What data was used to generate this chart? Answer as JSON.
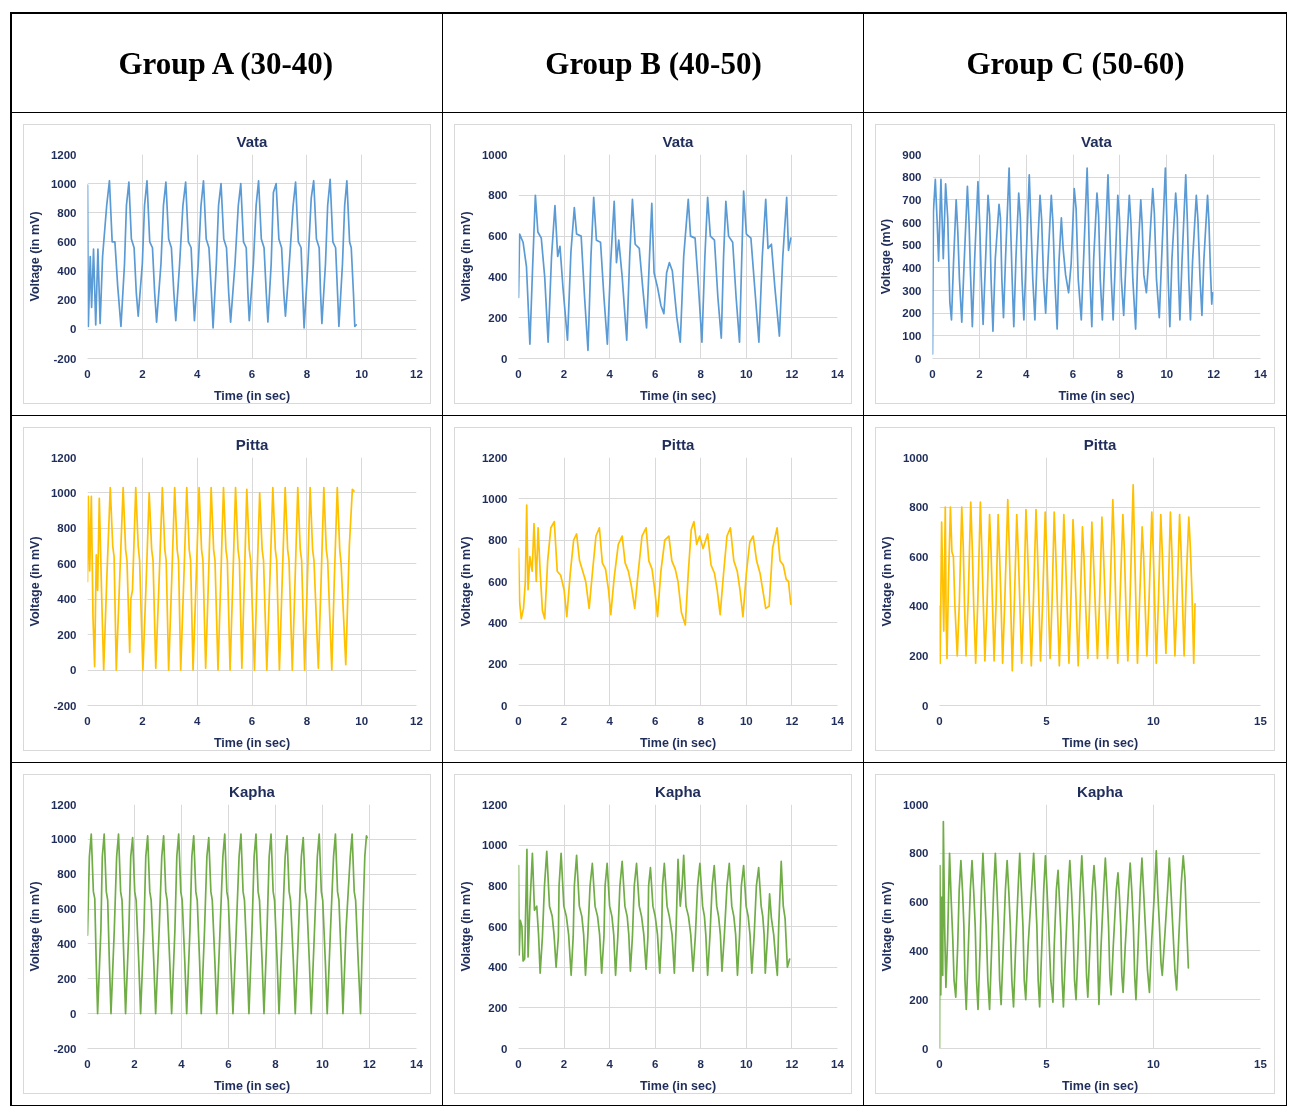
{
  "chart_data": [
    {
      "type": "other",
      "title": "Group A (30-40)"
    },
    {
      "type": "other",
      "title": "Group B (40-50)"
    },
    {
      "type": "other",
      "title": "Group C (50-60)"
    },
    {
      "type": "line",
      "title": "Vata",
      "xlabel": "Time (in sec)",
      "ylabel": "Voltage (in mV)",
      "xlim": [
        0,
        12
      ],
      "ylim": [
        -200,
        1200
      ],
      "xticks": [
        0,
        2,
        4,
        6,
        8,
        10,
        12
      ],
      "yticks": [
        -200,
        0,
        200,
        400,
        600,
        800,
        1000,
        1200
      ],
      "grid": true,
      "x": [
        0,
        0.03,
        0.1,
        0.15,
        0.22,
        0.3,
        0.38,
        0.46,
        0.55,
        0.7,
        0.8,
        0.9,
        1.0,
        1.1,
        1.22,
        1.35,
        1.42,
        1.51,
        1.6,
        1.7,
        1.78,
        1.85,
        2.0,
        2.08,
        2.17,
        2.27,
        2.37,
        2.45,
        2.52,
        2.68,
        2.77,
        2.86,
        2.96,
        3.06,
        3.15,
        3.22,
        3.36,
        3.48,
        3.58,
        3.68,
        3.78,
        3.85,
        3.9,
        4.04,
        4.14,
        4.23,
        4.33,
        4.43,
        4.52,
        4.58,
        4.7,
        4.78,
        4.87,
        4.97,
        5.07,
        5.15,
        5.22,
        5.38,
        5.5,
        5.59,
        5.69,
        5.79,
        5.85,
        5.9,
        6.05,
        6.15,
        6.24,
        6.34,
        6.44,
        6.52,
        6.58,
        6.7,
        6.78,
        6.88,
        6.98,
        7.08,
        7.16,
        7.22,
        7.36,
        7.5,
        7.59,
        7.69,
        7.79,
        7.85,
        7.9,
        8.04,
        8.16,
        8.25,
        8.35,
        8.45,
        8.5,
        8.55,
        8.68,
        8.76,
        8.85,
        8.95,
        9.05,
        9.12,
        9.17,
        9.3,
        9.38,
        9.46,
        9.56,
        9.62,
        9.7,
        9.75,
        9.8
      ],
      "series": [
        {
          "color": "#5b9bd5",
          "values": [
            990,
            20,
            500,
            150,
            550,
            30,
            550,
            40,
            500,
            850,
            1020,
            600,
            600,
            300,
            20,
            450,
            850,
            1010,
            620,
            560,
            250,
            90,
            450,
            850,
            1020,
            600,
            560,
            250,
            50,
            450,
            850,
            1010,
            620,
            560,
            250,
            60,
            450,
            850,
            1010,
            600,
            560,
            250,
            60,
            450,
            850,
            1020,
            620,
            560,
            250,
            10,
            450,
            850,
            1000,
            620,
            560,
            250,
            50,
            450,
            850,
            1000,
            600,
            560,
            250,
            60,
            450,
            850,
            1020,
            620,
            560,
            250,
            50,
            450,
            940,
            1000,
            620,
            560,
            250,
            90,
            450,
            850,
            1010,
            600,
            560,
            250,
            10,
            450,
            900,
            1020,
            620,
            560,
            250,
            40,
            450,
            850,
            1030,
            600,
            560,
            250,
            20,
            450,
            850,
            1020,
            600,
            560,
            250,
            20,
            30
          ]
        }
      ]
    },
    {
      "type": "line",
      "title": "Vata",
      "xlabel": "Time (in sec)",
      "ylabel": "Voltage (in mV)",
      "xlim": [
        0,
        14
      ],
      "ylim": [
        0,
        1000
      ],
      "xticks": [
        0,
        2,
        4,
        6,
        8,
        10,
        12,
        14
      ],
      "yticks": [
        0,
        200,
        400,
        600,
        800,
        1000
      ],
      "grid": true,
      "x": [
        0,
        0.05,
        0.2,
        0.35,
        0.5,
        0.62,
        0.74,
        0.85,
        1.0,
        1.15,
        1.3,
        1.45,
        1.6,
        1.72,
        1.82,
        1.95,
        2.15,
        2.3,
        2.45,
        2.55,
        2.75,
        2.9,
        3.05,
        3.18,
        3.3,
        3.42,
        3.6,
        3.75,
        3.9,
        4.05,
        4.2,
        4.3,
        4.4,
        4.55,
        4.75,
        4.88,
        5.0,
        5.12,
        5.3,
        5.45,
        5.62,
        5.75,
        5.85,
        5.95,
        6.1,
        6.25,
        6.38,
        6.5,
        6.62,
        6.75,
        6.95,
        7.1,
        7.25,
        7.45,
        7.55,
        7.75,
        7.9,
        8.05,
        8.18,
        8.3,
        8.42,
        8.6,
        8.75,
        8.9,
        9.0,
        9.1,
        9.22,
        9.4,
        9.55,
        9.7,
        9.8,
        9.88,
        10.0,
        10.2,
        10.4,
        10.55,
        10.7,
        10.85,
        10.95,
        11.1,
        11.25,
        11.45,
        11.6,
        11.77,
        11.85,
        11.95
      ],
      "series": [
        {
          "color": "#5b9bd5",
          "values": [
            300,
            610,
            570,
            450,
            70,
            450,
            800,
            620,
            590,
            400,
            80,
            500,
            750,
            500,
            550,
            350,
            90,
            520,
            740,
            610,
            600,
            300,
            40,
            500,
            790,
            580,
            570,
            300,
            70,
            480,
            770,
            470,
            580,
            400,
            90,
            500,
            780,
            560,
            540,
            350,
            150,
            500,
            760,
            420,
            350,
            260,
            220,
            420,
            470,
            430,
            200,
            80,
            500,
            780,
            600,
            590,
            350,
            80,
            500,
            790,
            600,
            580,
            300,
            100,
            500,
            770,
            600,
            570,
            300,
            80,
            500,
            820,
            610,
            590,
            300,
            80,
            500,
            780,
            540,
            560,
            350,
            110,
            500,
            790,
            530,
            590
          ]
        }
      ]
    },
    {
      "type": "line",
      "title": "Vata",
      "xlabel": "Time (in sec)",
      "ylabel": "Voltage (mV)",
      "xlim": [
        0,
        14
      ],
      "ylim": [
        0,
        900
      ],
      "xticks": [
        0,
        2,
        4,
        6,
        8,
        10,
        12,
        14
      ],
      "yticks": [
        0,
        100,
        200,
        300,
        400,
        500,
        600,
        700,
        800,
        900
      ],
      "grid": true,
      "x": [
        0,
        0.04,
        0.12,
        0.2,
        0.26,
        0.36,
        0.46,
        0.56,
        0.65,
        0.74,
        0.81,
        0.9,
        1.01,
        1.08,
        1.15,
        1.25,
        1.35,
        1.49,
        1.56,
        1.62,
        1.7,
        1.8,
        1.94,
        2.02,
        2.08,
        2.16,
        2.26,
        2.37,
        2.44,
        2.5,
        2.58,
        2.68,
        2.84,
        2.9,
        2.96,
        3.03,
        3.12,
        3.27,
        3.33,
        3.4,
        3.47,
        3.56,
        3.68,
        3.75,
        3.82,
        3.9,
        4.0,
        4.13,
        4.2,
        4.28,
        4.37,
        4.46,
        4.59,
        4.66,
        4.74,
        4.83,
        4.93,
        5.07,
        5.14,
        5.22,
        5.32,
        5.4,
        5.5,
        5.58,
        5.68,
        5.81,
        5.92,
        6.05,
        6.13,
        6.22,
        6.35,
        6.45,
        6.6,
        6.66,
        6.72,
        6.8,
        6.88,
        7.02,
        7.09,
        7.16,
        7.25,
        7.35,
        7.49,
        7.56,
        7.63,
        7.71,
        7.8,
        7.91,
        7.98,
        8.06,
        8.16,
        8.26,
        8.4,
        8.47,
        8.55,
        8.67,
        8.75,
        8.89,
        8.95,
        9.02,
        9.13,
        9.23,
        9.4,
        9.47,
        9.56,
        9.68,
        9.78,
        9.94,
        10.0,
        10.06,
        10.13,
        10.22,
        10.38,
        10.45,
        10.5,
        10.56,
        10.65,
        10.81,
        10.88,
        10.94,
        11.01,
        11.1,
        11.26,
        11.33,
        11.42,
        11.5,
        11.58,
        11.74,
        11.8,
        11.86,
        11.92,
        11.95
      ],
      "series": [
        {
          "color": "#5b9bd5",
          "values": [
            20,
            650,
            790,
            600,
            430,
            790,
            440,
            770,
            620,
            250,
            170,
            430,
            700,
            560,
            350,
            160,
            420,
            760,
            600,
            380,
            140,
            440,
            780,
            580,
            360,
            150,
            420,
            720,
            630,
            350,
            120,
            440,
            680,
            620,
            350,
            180,
            450,
            840,
            600,
            350,
            140,
            440,
            730,
            620,
            350,
            170,
            450,
            810,
            600,
            350,
            170,
            430,
            720,
            610,
            350,
            200,
            430,
            720,
            600,
            350,
            130,
            430,
            620,
            480,
            370,
            290,
            420,
            750,
            660,
            350,
            170,
            440,
            840,
            620,
            350,
            140,
            440,
            730,
            630,
            350,
            170,
            440,
            810,
            600,
            350,
            170,
            420,
            720,
            620,
            350,
            190,
            430,
            720,
            600,
            350,
            130,
            410,
            700,
            590,
            370,
            290,
            440,
            750,
            640,
            350,
            180,
            440,
            840,
            620,
            350,
            140,
            440,
            730,
            620,
            350,
            170,
            430,
            810,
            600,
            350,
            170,
            430,
            720,
            610,
            350,
            190,
            430,
            720,
            600,
            400,
            240,
            290
          ]
        }
      ]
    },
    {
      "type": "line",
      "title": "Pitta",
      "xlabel": "Time (in sec)",
      "ylabel": "Voltage (in mV)",
      "xlim": [
        0,
        12
      ],
      "ylim": [
        -200,
        1200
      ],
      "xticks": [
        0,
        2,
        4,
        6,
        8,
        10,
        12
      ],
      "yticks": [
        -200,
        0,
        200,
        400,
        600,
        800,
        1000,
        1200
      ],
      "grid": true,
      "x": [
        0,
        0.03,
        0.08,
        0.14,
        0.2,
        0.26,
        0.32,
        0.37,
        0.43,
        0.52,
        0.59,
        0.7,
        0.83,
        0.92,
        0.97,
        1.05,
        1.17,
        1.3,
        1.39,
        1.44,
        1.54,
        1.58,
        1.64,
        1.76,
        1.85,
        1.9,
        2.02,
        2.14,
        2.25,
        2.34,
        2.39,
        2.49,
        2.61,
        2.73,
        2.82,
        2.87,
        2.96,
        3.07,
        3.18,
        3.27,
        3.32,
        3.4,
        3.51,
        3.62,
        3.71,
        3.76,
        3.85,
        3.96,
        4.07,
        4.16,
        4.21,
        4.31,
        4.41,
        4.51,
        4.6,
        4.65,
        4.76,
        4.86,
        4.96,
        5.05,
        5.1,
        5.2,
        5.3,
        5.4,
        5.49,
        5.54,
        5.63,
        5.72,
        5.81,
        5.9,
        5.95,
        6.09,
        6.18,
        6.28,
        6.37,
        6.42,
        6.54,
        6.65,
        6.76,
        6.85,
        6.9,
        7.0,
        7.1,
        7.21,
        7.3,
        7.35,
        7.47,
        7.57,
        7.67,
        7.76,
        7.81,
        7.92,
        8.02,
        8.12,
        8.21,
        8.26,
        8.42,
        8.52,
        8.62,
        8.71,
        8.76,
        8.91,
        9.0,
        9.11,
        9.2,
        9.25,
        9.42,
        9.55,
        9.66,
        9.72
      ],
      "series": [
        {
          "color": "#ffc000",
          "values": [
            500,
            980,
            560,
            980,
            300,
            20,
            650,
            450,
            970,
            400,
            0,
            500,
            1030,
            700,
            640,
            0,
            500,
            1030,
            680,
            620,
            100,
            400,
            450,
            1030,
            700,
            620,
            0,
            500,
            1000,
            680,
            620,
            10,
            500,
            1030,
            680,
            620,
            0,
            500,
            1030,
            680,
            620,
            0,
            500,
            1030,
            680,
            620,
            0,
            500,
            1030,
            680,
            620,
            10,
            500,
            1030,
            680,
            620,
            0,
            500,
            1030,
            680,
            620,
            0,
            500,
            1030,
            680,
            620,
            10,
            500,
            1020,
            680,
            620,
            0,
            500,
            1000,
            680,
            620,
            0,
            500,
            1030,
            680,
            620,
            0,
            500,
            1030,
            680,
            620,
            0,
            500,
            1030,
            680,
            620,
            0,
            500,
            1030,
            680,
            620,
            10,
            500,
            1030,
            680,
            620,
            0,
            500,
            1030,
            680,
            600,
            30,
            700,
            1020,
            1010
          ]
        }
      ]
    },
    {
      "type": "line",
      "title": "Pitta",
      "xlabel": "Time (in sec)",
      "ylabel": "Voltage (in mV)",
      "xlim": [
        0,
        14
      ],
      "ylim": [
        0,
        1200
      ],
      "xticks": [
        0,
        2,
        4,
        6,
        8,
        10,
        12,
        14
      ],
      "yticks": [
        0,
        200,
        400,
        600,
        800,
        1000,
        1200
      ],
      "grid": true,
      "x": [
        0,
        0.05,
        0.12,
        0.22,
        0.3,
        0.36,
        0.42,
        0.5,
        0.6,
        0.68,
        0.78,
        0.86,
        0.95,
        1.05,
        1.15,
        1.28,
        1.42,
        1.57,
        1.7,
        1.85,
        2.0,
        2.12,
        2.28,
        2.42,
        2.55,
        2.68,
        2.82,
        2.95,
        3.1,
        3.25,
        3.4,
        3.55,
        3.68,
        3.82,
        3.95,
        4.05,
        4.2,
        4.38,
        4.55,
        4.68,
        4.82,
        4.95,
        5.1,
        5.25,
        5.42,
        5.6,
        5.72,
        5.86,
        5.98,
        6.1,
        6.25,
        6.42,
        6.6,
        6.73,
        6.88,
        7.0,
        7.15,
        7.32,
        7.45,
        7.58,
        7.7,
        7.82,
        7.95,
        8.1,
        8.3,
        8.45,
        8.6,
        8.72,
        8.85,
        9.0,
        9.15,
        9.3,
        9.45,
        9.6,
        9.72,
        9.85,
        10.0,
        10.15,
        10.3,
        10.45,
        10.6,
        10.72,
        10.85,
        11.0,
        11.15,
        11.35,
        11.48,
        11.62,
        11.75,
        11.85,
        11.95
      ],
      "series": [
        {
          "color": "#ffc000",
          "values": [
            760,
            500,
            420,
            470,
            600,
            970,
            560,
            720,
            650,
            880,
            600,
            860,
            650,
            460,
            420,
            700,
            860,
            890,
            650,
            630,
            560,
            430,
            650,
            800,
            830,
            700,
            650,
            600,
            470,
            650,
            820,
            860,
            690,
            660,
            560,
            440,
            620,
            780,
            820,
            690,
            650,
            580,
            470,
            640,
            820,
            860,
            700,
            660,
            560,
            430,
            650,
            800,
            820,
            700,
            660,
            600,
            450,
            390,
            640,
            850,
            890,
            780,
            820,
            760,
            830,
            680,
            640,
            560,
            440,
            640,
            820,
            860,
            700,
            650,
            560,
            430,
            640,
            790,
            820,
            700,
            640,
            560,
            470,
            480,
            760,
            860,
            700,
            680,
            610,
            600,
            490
          ]
        }
      ]
    },
    {
      "type": "line",
      "title": "Pitta",
      "xlabel": "Time (in sec)",
      "ylabel": "Voltage (in mV)",
      "xlim": [
        0,
        15
      ],
      "ylim": [
        0,
        1000
      ],
      "xticks": [
        0,
        5,
        10,
        15
      ],
      "yticks": [
        0,
        200,
        400,
        600,
        800,
        1000
      ],
      "grid": true,
      "x": [
        0,
        0.03,
        0.1,
        0.15,
        0.2,
        0.27,
        0.31,
        0.35,
        0.42,
        0.51,
        0.58,
        0.65,
        0.72,
        0.83,
        0.93,
        1.04,
        1.11,
        1.17,
        1.24,
        1.34,
        1.46,
        1.53,
        1.6,
        1.69,
        1.79,
        1.91,
        1.98,
        2.05,
        2.12,
        2.22,
        2.34,
        2.41,
        2.48,
        2.55,
        2.64,
        2.74,
        2.81,
        2.88,
        2.95,
        3.05,
        3.19,
        3.26,
        3.33,
        3.4,
        3.5,
        3.61,
        3.68,
        3.76,
        3.84,
        3.94,
        4.04,
        4.11,
        4.2,
        4.29,
        4.39,
        4.51,
        4.58,
        4.65,
        4.72,
        4.82,
        4.94,
        5.01,
        5.09,
        5.17,
        5.26,
        5.36,
        5.43,
        5.51,
        5.6,
        5.7,
        5.81,
        5.88,
        5.96,
        6.05,
        6.14,
        6.24,
        6.31,
        6.39,
        6.48,
        6.58,
        6.68,
        6.75,
        6.83,
        6.93,
        7.02,
        7.12,
        7.19,
        7.28,
        7.38,
        7.48,
        7.59,
        7.66,
        7.75,
        7.85,
        7.96,
        8.1,
        8.17,
        8.24,
        8.33,
        8.43,
        8.57,
        8.64,
        8.71,
        8.8,
        8.9,
        9.05,
        9.12,
        9.18,
        9.25,
        9.35,
        9.47,
        9.54,
        9.61,
        9.69,
        9.79,
        9.92,
        9.99,
        10.06,
        10.13,
        10.23,
        10.34,
        10.41,
        10.49,
        10.58,
        10.68,
        10.79,
        10.86,
        10.93,
        11.0,
        11.1,
        11.22,
        11.29,
        11.36,
        11.43,
        11.53,
        11.65,
        11.72,
        11.8,
        11.88,
        11.94
      ],
      "series": [
        {
          "color": "#ffc000",
          "values": [
            400,
            170,
            740,
            500,
            300,
            800,
            350,
            190,
            500,
            800,
            620,
            600,
            400,
            200,
            420,
            800,
            640,
            400,
            200,
            420,
            820,
            640,
            400,
            170,
            420,
            820,
            620,
            400,
            180,
            400,
            770,
            620,
            400,
            180,
            400,
            770,
            600,
            400,
            170,
            420,
            830,
            640,
            400,
            140,
            420,
            770,
            620,
            400,
            170,
            420,
            790,
            640,
            400,
            160,
            420,
            790,
            620,
            400,
            180,
            420,
            780,
            620,
            400,
            190,
            420,
            780,
            620,
            400,
            160,
            420,
            770,
            620,
            400,
            170,
            420,
            750,
            600,
            400,
            160,
            420,
            720,
            600,
            400,
            190,
            420,
            740,
            600,
            400,
            190,
            420,
            760,
            620,
            400,
            190,
            420,
            830,
            640,
            400,
            170,
            420,
            770,
            620,
            400,
            180,
            420,
            890,
            620,
            400,
            170,
            420,
            720,
            600,
            400,
            200,
            420,
            780,
            620,
            400,
            170,
            420,
            770,
            620,
            400,
            210,
            420,
            780,
            620,
            400,
            200,
            420,
            770,
            620,
            400,
            200,
            500,
            760,
            640,
            450,
            170,
            410
          ]
        }
      ]
    },
    {
      "type": "line",
      "title": "Kapha",
      "xlabel": "Time (in sec)",
      "ylabel": "Voltage (in mV)",
      "xlim": [
        0,
        14
      ],
      "ylim": [
        -200,
        1200
      ],
      "xticks": [
        0,
        2,
        4,
        6,
        8,
        10,
        12,
        14
      ],
      "yticks": [
        -200,
        0,
        200,
        400,
        600,
        800,
        1000,
        1200
      ],
      "grid": true,
      "x": [
        0,
        0.08,
        0.16,
        0.25,
        0.31,
        0.37,
        0.43,
        0.57,
        0.63,
        0.71,
        0.8,
        0.86,
        0.93,
        1.0,
        1.14,
        1.24,
        1.32,
        1.41,
        1.47,
        1.55,
        1.62,
        1.76,
        1.84,
        1.92,
        2.01,
        2.07,
        2.18,
        2.26,
        2.4,
        2.48,
        2.56,
        2.65,
        2.71,
        2.82,
        2.9,
        3.05,
        3.16,
        3.24,
        3.33,
        3.39,
        3.5,
        3.58,
        3.72,
        3.8,
        3.88,
        3.97,
        4.03,
        4.14,
        4.22,
        4.36,
        4.44,
        4.52,
        4.61,
        4.67,
        4.77,
        4.84,
        4.98,
        5.08,
        5.16,
        5.25,
        5.31,
        5.42,
        5.5,
        5.64,
        5.76,
        5.84,
        5.93,
        5.99,
        6.1,
        6.19,
        6.33,
        6.45,
        6.53,
        6.62,
        6.68,
        6.79,
        6.87,
        7.0,
        7.09,
        7.17,
        7.26,
        7.32,
        7.43,
        7.51,
        7.64,
        7.73,
        7.81,
        7.9,
        7.96,
        8.07,
        8.15,
        8.29,
        8.41,
        8.49,
        8.58,
        8.64,
        8.76,
        8.84,
        8.98,
        9.1,
        9.18,
        9.27,
        9.33,
        9.44,
        9.52,
        9.66,
        9.78,
        9.86,
        9.95,
        10.01,
        10.12,
        10.2,
        10.34,
        10.47,
        10.55,
        10.64,
        10.7,
        10.8,
        10.87,
        11.0,
        11.18,
        11.26,
        11.35,
        11.41,
        11.52,
        11.62,
        11.72,
        11.8,
        11.87,
        11.9
      ],
      "series": [
        {
          "color": "#70ad47",
          "values": [
            450,
            900,
            1030,
            700,
            660,
            300,
            0,
            480,
            900,
            1030,
            700,
            650,
            300,
            0,
            480,
            900,
            1030,
            700,
            650,
            300,
            0,
            480,
            900,
            1010,
            700,
            650,
            300,
            0,
            480,
            900,
            1020,
            700,
            650,
            300,
            0,
            480,
            900,
            1020,
            700,
            650,
            300,
            0,
            480,
            900,
            1030,
            700,
            650,
            300,
            0,
            480,
            900,
            1020,
            700,
            650,
            300,
            0,
            480,
            900,
            1010,
            700,
            650,
            300,
            0,
            480,
            900,
            1030,
            700,
            650,
            300,
            0,
            480,
            900,
            1030,
            700,
            650,
            300,
            0,
            480,
            900,
            1030,
            700,
            650,
            300,
            0,
            480,
            900,
            1030,
            700,
            650,
            300,
            0,
            480,
            900,
            1020,
            700,
            650,
            300,
            0,
            480,
            900,
            1010,
            700,
            650,
            300,
            0,
            480,
            900,
            1030,
            700,
            650,
            300,
            0,
            480,
            900,
            1030,
            700,
            650,
            300,
            0,
            480,
            900,
            1030,
            700,
            650,
            300,
            0,
            550,
            900,
            1020,
            1010
          ]
        }
      ]
    },
    {
      "type": "line",
      "title": "Kapha",
      "xlabel": "Time (in sec)",
      "ylabel": "Volatge (in mV)",
      "xlim": [
        0,
        14
      ],
      "ylim": [
        0,
        1200
      ],
      "xticks": [
        0,
        2,
        4,
        6,
        8,
        10,
        12,
        14
      ],
      "yticks": [
        0,
        200,
        400,
        600,
        800,
        1000,
        1200
      ],
      "grid": true,
      "x": [
        0,
        0.03,
        0.08,
        0.15,
        0.2,
        0.27,
        0.37,
        0.42,
        0.5,
        0.61,
        0.7,
        0.8,
        0.88,
        0.95,
        1.05,
        1.14,
        1.24,
        1.36,
        1.48,
        1.56,
        1.65,
        1.75,
        1.78,
        1.87,
        1.99,
        2.1,
        2.2,
        2.31,
        2.4,
        2.45,
        2.55,
        2.67,
        2.78,
        2.86,
        2.94,
        3.04,
        3.14,
        3.24,
        3.36,
        3.47,
        3.56,
        3.65,
        3.75,
        3.8,
        3.89,
        4.0,
        4.1,
        4.18,
        4.26,
        4.36,
        4.45,
        4.55,
        4.67,
        4.77,
        4.84,
        4.91,
        5.0,
        5.08,
        5.18,
        5.3,
        5.4,
        5.5,
        5.6,
        5.68,
        5.71,
        5.79,
        5.9,
        6.0,
        6.1,
        6.2,
        6.28,
        6.32,
        6.4,
        6.52,
        6.62,
        6.74,
        6.84,
        6.92,
        7.0,
        7.1,
        7.18,
        7.25,
        7.35,
        7.46,
        7.56,
        7.66,
        7.76,
        7.86,
        7.96,
        8.08,
        8.16,
        8.22,
        8.3,
        8.4,
        8.5,
        8.59,
        8.7,
        8.78,
        8.86,
        8.93,
        9.03,
        9.15,
        9.25,
        9.36,
        9.45,
        9.53,
        9.61,
        9.7,
        9.78,
        9.88,
        9.99,
        10.08,
        10.16,
        10.24,
        10.34,
        10.44,
        10.54,
        10.65,
        10.72,
        10.78,
        10.83,
        10.93,
        11.02,
        11.1,
        11.2,
        11.28,
        11.36,
        11.42,
        11.53,
        11.62,
        11.7,
        11.8,
        11.9
      ],
      "series": [
        {
          "color": "#70ad47",
          "values": [
            900,
            460,
            630,
            600,
            430,
            440,
            980,
            450,
            700,
            960,
            680,
            700,
            560,
            370,
            550,
            800,
            970,
            700,
            650,
            560,
            400,
            550,
            800,
            960,
            700,
            650,
            560,
            360,
            550,
            800,
            950,
            700,
            650,
            560,
            360,
            550,
            800,
            910,
            700,
            650,
            560,
            370,
            550,
            800,
            910,
            700,
            650,
            560,
            360,
            550,
            800,
            920,
            700,
            650,
            560,
            380,
            550,
            800,
            910,
            700,
            650,
            560,
            390,
            550,
            800,
            890,
            700,
            650,
            560,
            370,
            550,
            800,
            910,
            700,
            650,
            560,
            370,
            600,
            930,
            700,
            800,
            950,
            700,
            650,
            560,
            380,
            550,
            800,
            910,
            700,
            650,
            560,
            360,
            550,
            800,
            900,
            700,
            650,
            560,
            380,
            550,
            800,
            910,
            700,
            650,
            560,
            360,
            550,
            800,
            900,
            700,
            650,
            560,
            370,
            550,
            800,
            890,
            700,
            650,
            560,
            370,
            550,
            760,
            640,
            560,
            450,
            360,
            600,
            920,
            700,
            640,
            400,
            440
          ]
        }
      ]
    },
    {
      "type": "line",
      "title": "Kapha",
      "xlabel": "Time (in sec)",
      "ylabel": "Voltage (in mV)",
      "xlim": [
        0,
        15
      ],
      "ylim": [
        0,
        1000
      ],
      "xticks": [
        0,
        5,
        10,
        15
      ],
      "yticks": [
        0,
        200,
        400,
        600,
        800,
        1000
      ],
      "grid": true,
      "x": [
        0,
        0.02,
        0.06,
        0.11,
        0.15,
        0.18,
        0.24,
        0.3,
        0.38,
        0.47,
        0.55,
        0.62,
        0.68,
        0.76,
        0.85,
        0.92,
        1.0,
        1.08,
        1.14,
        1.19,
        1.25,
        1.35,
        1.44,
        1.52,
        1.6,
        1.67,
        1.73,
        1.8,
        1.9,
        1.96,
        2.03,
        2.11,
        2.18,
        2.26,
        2.34,
        2.44,
        2.53,
        2.61,
        2.69,
        2.75,
        2.81,
        2.88,
        2.98,
        3.08,
        3.16,
        3.24,
        3.31,
        3.38,
        3.46,
        3.56,
        3.67,
        3.75,
        3.83,
        3.9,
        3.96,
        4.03,
        4.14,
        4.3,
        4.4,
        4.48,
        4.55,
        4.61,
        4.68,
        4.78,
        4.87,
        4.95,
        5.03,
        5.1,
        5.2,
        5.3,
        5.36,
        5.46,
        5.54,
        5.61,
        5.67,
        5.73,
        5.79,
        5.9,
        6.01,
        6.09,
        6.17,
        6.24,
        6.31,
        6.38,
        6.48,
        6.57,
        6.65,
        6.73,
        6.8,
        6.87,
        6.93,
        7.03,
        7.14,
        7.22,
        7.3,
        7.36,
        7.41,
        7.45,
        7.55,
        7.67,
        7.75,
        7.83,
        7.9,
        7.96,
        8.02,
        8.12,
        8.26,
        8.34,
        8.41,
        8.47,
        8.52,
        8.58,
        8.68,
        8.83,
        8.91,
        8.99,
        9.06,
        9.12,
        9.18,
        9.28,
        9.38,
        9.46,
        9.54,
        9.62,
        9.72,
        9.81,
        9.92,
        10.05,
        10.13,
        10.2,
        10.28,
        10.35,
        10.41,
        10.52,
        10.66,
        10.74,
        10.82,
        10.9,
        11.0,
        11.08,
        11.18,
        11.3,
        11.39,
        11.47,
        11.55,
        11.63
      ],
      "series": [
        {
          "color": "#70ad47",
          "values": [
            0,
            750,
            220,
            620,
            300,
            930,
            500,
            250,
            450,
            800,
            600,
            450,
            280,
            210,
            420,
            650,
            770,
            640,
            500,
            280,
            160,
            420,
            650,
            770,
            640,
            500,
            280,
            160,
            420,
            650,
            800,
            640,
            500,
            280,
            160,
            420,
            650,
            800,
            640,
            500,
            280,
            180,
            420,
            650,
            770,
            640,
            500,
            280,
            170,
            420,
            650,
            800,
            640,
            500,
            280,
            200,
            420,
            650,
            800,
            640,
            500,
            280,
            170,
            420,
            650,
            790,
            640,
            500,
            280,
            190,
            420,
            650,
            730,
            600,
            480,
            280,
            170,
            420,
            650,
            770,
            640,
            500,
            280,
            200,
            420,
            650,
            790,
            640,
            500,
            300,
            210,
            420,
            650,
            750,
            640,
            500,
            300,
            180,
            420,
            650,
            780,
            640,
            500,
            300,
            220,
            420,
            650,
            720,
            620,
            500,
            300,
            230,
            420,
            650,
            760,
            640,
            500,
            300,
            200,
            420,
            650,
            780,
            640,
            500,
            320,
            230,
            450,
            650,
            810,
            640,
            500,
            350,
            300,
            450,
            650,
            780,
            640,
            500,
            320,
            240,
            450,
            680,
            790,
            700,
            500,
            330
          ]
        }
      ]
    }
  ]
}
